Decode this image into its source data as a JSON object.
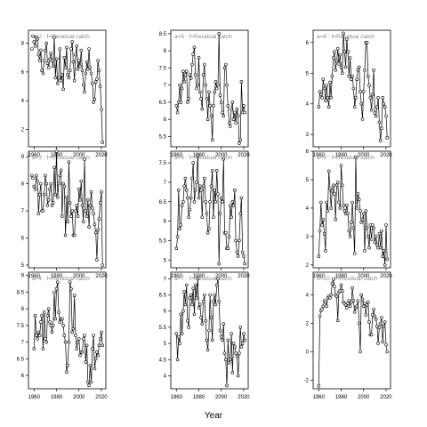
{
  "figure": {
    "xlabel": "Year"
  },
  "chart_data": [
    {
      "type": "scatter",
      "title": "a=2 : f=Residual catch",
      "xlim": [
        1955,
        2024
      ],
      "ylim": [
        0.8,
        8.9
      ],
      "xticks": [
        1960,
        1980,
        2000,
        2020
      ],
      "yticks": [
        2,
        4,
        6,
        8
      ],
      "line_from": 1960,
      "years": [
        1958,
        1959,
        1960,
        1961,
        1962,
        1963,
        1964,
        1965,
        1966,
        1967,
        1968,
        1969,
        1970,
        1971,
        1972,
        1973,
        1974,
        1975,
        1976,
        1977,
        1978,
        1979,
        1980,
        1981,
        1982,
        1983,
        1984,
        1985,
        1986,
        1987,
        1988,
        1989,
        1990,
        1991,
        1992,
        1993,
        1994,
        1995,
        1996,
        1997,
        1998,
        1999,
        2000,
        2001,
        2002,
        2003,
        2004,
        2005,
        2006,
        2007,
        2008,
        2009,
        2010,
        2011,
        2012,
        2013,
        2014,
        2015,
        2016,
        2017,
        2018,
        2019,
        2020,
        2021
      ],
      "values": [
        7.6,
        8.5,
        8.1,
        7.8,
        8.4,
        8.3,
        7.2,
        6.8,
        7.5,
        6.1,
        5.9,
        6.8,
        7.5,
        8.0,
        6.6,
        6.3,
        6.9,
        7.3,
        6.8,
        6.4,
        8.4,
        5.6,
        6.9,
        5.2,
        5.6,
        7.6,
        5.4,
        5.8,
        4.8,
        7.0,
        6.3,
        7.7,
        5.8,
        5.6,
        6.1,
        7.6,
        8.1,
        6.7,
        5.4,
        7.2,
        7.8,
        6.2,
        6.8,
        6.4,
        7.5,
        6.1,
        5.1,
        4.6,
        5.9,
        6.7,
        6.2,
        7.6,
        6.3,
        5.9,
        5.2,
        3.9,
        4.1,
        5.3,
        5.5,
        6.8,
        6.1,
        5.0,
        3.4,
        1.1
      ]
    },
    {
      "type": "scatter",
      "title": "a=5 : f=Residual catch",
      "xlim": [
        1955,
        2024
      ],
      "ylim": [
        5.2,
        8.6
      ],
      "xticks": [
        1960,
        1980,
        2000,
        2020
      ],
      "yticks": [
        5.5,
        6.0,
        6.5,
        7.0,
        7.5,
        8.0,
        8.5
      ],
      "line_from": 1960,
      "years": [
        1960,
        1961,
        1962,
        1963,
        1964,
        1965,
        1966,
        1967,
        1968,
        1969,
        1970,
        1971,
        1972,
        1973,
        1974,
        1975,
        1976,
        1977,
        1978,
        1979,
        1980,
        1981,
        1982,
        1983,
        1984,
        1985,
        1986,
        1987,
        1988,
        1989,
        1990,
        1991,
        1992,
        1993,
        1994,
        1995,
        1996,
        1997,
        1998,
        1999,
        2000,
        2001,
        2002,
        2003,
        2004,
        2005,
        2006,
        2007,
        2008,
        2009,
        2010,
        2011,
        2012,
        2013,
        2014,
        2015,
        2016,
        2017,
        2018,
        2019,
        2020,
        2021
      ],
      "values": [
        6.4,
        6.2,
        6.5,
        7.0,
        6.5,
        6.9,
        7.4,
        7.1,
        7.3,
        7.4,
        6.5,
        6.6,
        7.3,
        7.2,
        7.6,
        7.9,
        8.1,
        7.3,
        6.9,
        7.0,
        7.8,
        6.8,
        6.6,
        6.3,
        7.3,
        7.6,
        7.0,
        6.6,
        6.0,
        6.8,
        6.4,
        6.1,
        5.4,
        6.4,
        6.8,
        7.1,
        6.9,
        7.0,
        8.5,
        6.7,
        6.5,
        6.2,
        6.1,
        7.5,
        7.6,
        7.0,
        6.4,
        5.9,
        5.8,
        6.3,
        6.5,
        6.0,
        6.2,
        5.9,
        6.3,
        6.1,
        5.3,
        5.4,
        7.1,
        6.2,
        6.4,
        6.2
      ]
    },
    {
      "type": "scatter",
      "title": "a=8 : f=Residual catch",
      "xlim": [
        1955,
        2024
      ],
      "ylim": [
        2.6,
        6.4
      ],
      "xticks": [
        1960,
        1980,
        2000,
        2020
      ],
      "yticks": [
        3,
        4,
        5,
        6
      ],
      "line_from": 1960,
      "years": [
        1960,
        1961,
        1962,
        1963,
        1964,
        1965,
        1966,
        1967,
        1968,
        1969,
        1970,
        1971,
        1972,
        1973,
        1974,
        1975,
        1976,
        1977,
        1978,
        1979,
        1980,
        1981,
        1982,
        1983,
        1984,
        1985,
        1986,
        1987,
        1988,
        1989,
        1990,
        1991,
        1992,
        1993,
        1994,
        1995,
        1996,
        1997,
        1998,
        1999,
        2000,
        2001,
        2002,
        2003,
        2004,
        2005,
        2006,
        2007,
        2008,
        2009,
        2010,
        2011,
        2012,
        2013,
        2014,
        2015,
        2016,
        2017,
        2018,
        2019,
        2020,
        2021
      ],
      "values": [
        3.9,
        4.4,
        4.3,
        4.2,
        4.8,
        4.5,
        4.1,
        4.6,
        4.2,
        3.9,
        4.7,
        4.2,
        4.9,
        5.5,
        5.7,
        5.1,
        5.4,
        5.8,
        5.3,
        5.6,
        5.2,
        5.0,
        6.3,
        5.7,
        5.2,
        6.1,
        5.7,
        4.9,
        5.5,
        4.8,
        4.9,
        4.5,
        3.9,
        4.2,
        4.8,
        5.1,
        5.2,
        4.4,
        4.0,
        3.5,
        4.4,
        5.1,
        6.0,
        6.0,
        4.9,
        4.6,
        4.2,
        3.8,
        4.3,
        5.1,
        3.7,
        3.6,
        3.9,
        4.2,
        3.4,
        2.8,
        3.2,
        4.2,
        4.0,
        3.9,
        3.6,
        2.9
      ]
    },
    {
      "type": "scatter",
      "title": "a=3 : f=Residual catch",
      "xlim": [
        1955,
        2024
      ],
      "ylim": [
        4.9,
        9.2
      ],
      "xticks": [
        1960,
        1980,
        2000,
        2020
      ],
      "yticks": [
        5,
        6,
        7,
        8,
        9
      ],
      "line_from": 1960,
      "years": [
        1958,
        1959,
        1960,
        1961,
        1962,
        1963,
        1964,
        1965,
        1966,
        1967,
        1968,
        1969,
        1970,
        1971,
        1972,
        1973,
        1974,
        1975,
        1976,
        1977,
        1978,
        1979,
        1980,
        1981,
        1982,
        1983,
        1984,
        1985,
        1986,
        1987,
        1988,
        1989,
        1990,
        1991,
        1992,
        1993,
        1994,
        1995,
        1996,
        1997,
        1998,
        1999,
        2000,
        2001,
        2002,
        2003,
        2004,
        2005,
        2006,
        2007,
        2008,
        2009,
        2010,
        2011,
        2012,
        2013,
        2014,
        2015,
        2016,
        2017,
        2018,
        2019,
        2020,
        2021
      ],
      "values": [
        8.3,
        8.2,
        7.9,
        7.8,
        8.3,
        8.1,
        6.9,
        7.6,
        8.0,
        7.0,
        7.0,
        7.6,
        8.3,
        8.0,
        7.2,
        7.4,
        7.8,
        8.0,
        7.2,
        7.3,
        8.6,
        7.6,
        9.2,
        7.5,
        8.0,
        8.3,
        8.5,
        6.8,
        8.0,
        7.9,
        6.1,
        7.5,
        6.6,
        8.8,
        7.3,
        6.8,
        7.0,
        6.1,
        6.1,
        7.0,
        7.2,
        6.8,
        7.8,
        7.4,
        8.1,
        7.2,
        6.6,
        8.9,
        7.0,
        6.8,
        7.4,
        6.4,
        7.2,
        7.7,
        7.1,
        6.9,
        6.5,
        6.2,
        5.2,
        6.3,
        6.7,
        7.3,
        7.7,
        5.0
      ]
    },
    {
      "type": "scatter",
      "title": "a=6 : f=Residual catch",
      "xlim": [
        1955,
        2024
      ],
      "ylim": [
        4.8,
        7.8
      ],
      "xticks": [
        1960,
        1980,
        2000,
        2020
      ],
      "yticks": [
        5.0,
        5.5,
        6.0,
        6.5,
        7.0,
        7.5
      ],
      "line_from": 1960,
      "years": [
        1960,
        1961,
        1962,
        1963,
        1964,
        1965,
        1966,
        1967,
        1968,
        1969,
        1970,
        1971,
        1972,
        1973,
        1974,
        1975,
        1976,
        1977,
        1978,
        1979,
        1980,
        1981,
        1982,
        1983,
        1984,
        1985,
        1986,
        1987,
        1988,
        1989,
        1990,
        1991,
        1992,
        1993,
        1994,
        1995,
        1996,
        1997,
        1998,
        1999,
        2000,
        2001,
        2002,
        2003,
        2004,
        2005,
        2006,
        2007,
        2008,
        2009,
        2010,
        2011,
        2012,
        2013,
        2014,
        2015,
        2016,
        2017,
        2018,
        2019,
        2020,
        2021
      ],
      "values": [
        5.3,
        5.6,
        6.8,
        5.8,
        5.9,
        6.4,
        6.5,
        6.9,
        7.1,
        6.8,
        6.6,
        6.1,
        6.3,
        6.6,
        7.1,
        7.5,
        6.5,
        6.8,
        7.0,
        7.7,
        6.6,
        6.9,
        6.8,
        6.1,
        6.9,
        7.1,
        6.5,
        6.2,
        5.7,
        5.8,
        6.5,
        6.9,
        7.3,
        6.1,
        6.8,
        6.5,
        7.3,
        6.7,
        4.9,
        6.2,
        6.6,
        6.5,
        7.6,
        5.7,
        5.7,
        5.3,
        5.3,
        5.6,
        6.4,
        6.1,
        6.5,
        6.4,
        6.8,
        5.5,
        5.2,
        5.1,
        5.5,
        6.2,
        6.6,
        5.2,
        5.1,
        4.9
      ]
    },
    {
      "type": "scatter",
      "title": "a=9 : f=Residual catch",
      "xlim": [
        1955,
        2024
      ],
      "ylim": [
        1.9,
        6.0
      ],
      "xticks": [
        1960,
        1980,
        2000,
        2020
      ],
      "yticks": [
        2,
        3,
        4,
        5,
        6
      ],
      "line_from": 1960,
      "years": [
        1960,
        1961,
        1962,
        1963,
        1964,
        1965,
        1966,
        1967,
        1968,
        1969,
        1970,
        1971,
        1972,
        1973,
        1974,
        1975,
        1976,
        1977,
        1978,
        1979,
        1980,
        1981,
        1982,
        1983,
        1984,
        1985,
        1986,
        1987,
        1988,
        1989,
        1990,
        1991,
        1992,
        1993,
        1994,
        1995,
        1996,
        1997,
        1998,
        1999,
        2000,
        2001,
        2002,
        2003,
        2004,
        2005,
        2006,
        2007,
        2008,
        2009,
        2010,
        2011,
        2012,
        2013,
        2014,
        2015,
        2016,
        2017,
        2018,
        2019,
        2020,
        2021
      ],
      "values": [
        2.3,
        3.2,
        4.2,
        3.4,
        3.6,
        3.1,
        2.5,
        4.2,
        3.9,
        5.3,
        4.7,
        4.0,
        4.6,
        4.8,
        4.5,
        3.6,
        4.8,
        4.9,
        4.2,
        4.0,
        5.5,
        4.8,
        4.1,
        3.9,
        3.8,
        4.1,
        3.8,
        3.2,
        3.0,
        3.5,
        4.2,
        3.3,
        2.4,
        5.8,
        4.0,
        4.5,
        4.3,
        3.9,
        3.5,
        3.6,
        3.8,
        2.5,
        3.9,
        3.3,
        3.0,
        2.6,
        3.4,
        2.9,
        3.4,
        3.3,
        2.8,
        3.0,
        2.7,
        2.6,
        3.1,
        2.6,
        3.2,
        2.3,
        2.5,
        2.0,
        3.4,
        2.2
      ]
    },
    {
      "type": "scatter",
      "title": "a=4 : f=Residual catch",
      "xlim": [
        1955,
        2024
      ],
      "ylim": [
        5.6,
        9.1
      ],
      "xticks": [
        1960,
        1980,
        2000,
        2020
      ],
      "yticks": [
        6.0,
        6.5,
        7.0,
        7.5,
        8.0,
        8.5,
        9.0
      ],
      "line_from": 1960,
      "years": [
        1960,
        1961,
        1962,
        1963,
        1964,
        1965,
        1966,
        1967,
        1968,
        1969,
        1970,
        1971,
        1972,
        1973,
        1974,
        1975,
        1976,
        1977,
        1978,
        1979,
        1980,
        1981,
        1982,
        1983,
        1984,
        1985,
        1986,
        1987,
        1988,
        1989,
        1990,
        1991,
        1992,
        1993,
        1994,
        1995,
        1996,
        1997,
        1998,
        1999,
        2000,
        2001,
        2002,
        2003,
        2004,
        2005,
        2006,
        2007,
        2008,
        2009,
        2010,
        2011,
        2012,
        2013,
        2014,
        2015,
        2016,
        2017,
        2018,
        2019,
        2020,
        2021
      ],
      "values": [
        6.8,
        7.8,
        7.2,
        7.1,
        7.3,
        7.2,
        7.6,
        7.8,
        6.8,
        7.9,
        7.1,
        7.0,
        7.8,
        8.0,
        7.6,
        7.5,
        7.3,
        7.5,
        8.5,
        7.7,
        8.6,
        8.8,
        7.9,
        7.6,
        7.7,
        7.7,
        7.5,
        7.2,
        7.0,
        6.1,
        6.3,
        7.0,
        8.8,
        8.6,
        7.3,
        7.4,
        8.4,
        7.2,
        6.8,
        7.0,
        7.1,
        6.6,
        6.7,
        6.7,
        7.1,
        7.2,
        6.4,
        6.9,
        5.8,
        5.7,
        6.3,
        5.8,
        6.8,
        7.2,
        6.2,
        6.5,
        6.7,
        6.6,
        6.9,
        7.1,
        7.3,
        6.9
      ]
    },
    {
      "type": "scatter",
      "title": "a=7 : f=Residual catch",
      "xlim": [
        1955,
        2024
      ],
      "ylim": [
        3.6,
        7.2
      ],
      "xticks": [
        1960,
        1980,
        2000,
        2020
      ],
      "yticks": [
        4.0,
        4.5,
        5.0,
        5.5,
        6.0,
        6.5,
        7.0
      ],
      "line_from": 1960,
      "years": [
        1960,
        1961,
        1962,
        1963,
        1964,
        1965,
        1966,
        1967,
        1968,
        1969,
        1970,
        1971,
        1972,
        1973,
        1974,
        1975,
        1976,
        1977,
        1978,
        1979,
        1980,
        1981,
        1982,
        1983,
        1984,
        1985,
        1986,
        1987,
        1988,
        1989,
        1990,
        1991,
        1992,
        1993,
        1994,
        1995,
        1996,
        1997,
        1998,
        1999,
        2000,
        2001,
        2002,
        2003,
        2004,
        2005,
        2006,
        2007,
        2008,
        2009,
        2010,
        2011,
        2012,
        2013,
        2014,
        2015,
        2016,
        2017,
        2018,
        2019,
        2020,
        2021
      ],
      "values": [
        5.3,
        4.5,
        5.2,
        5.0,
        5.9,
        5.3,
        6.0,
        6.6,
        6.2,
        6.8,
        5.7,
        5.5,
        6.4,
        6.5,
        6.2,
        6.7,
        5.9,
        6.8,
        6.4,
        7.0,
        6.1,
        6.2,
        5.8,
        5.6,
        6.3,
        6.5,
        5.7,
        5.1,
        4.8,
        5.4,
        6.5,
        5.8,
        5.1,
        6.3,
        6.5,
        6.2,
        6.8,
        7.0,
        6.3,
        5.4,
        5.2,
        5.1,
        5.6,
        4.7,
        4.5,
        3.7,
        5.1,
        4.4,
        4.5,
        5.3,
        4.1,
        5.0,
        4.9,
        4.7,
        4.6,
        4.0,
        4.7,
        5.5,
        4.9,
        5.0,
        5.3,
        5.1
      ]
    },
    {
      "type": "scatter",
      "title": "a=10 : f=Residual catch",
      "xlim": [
        1955,
        2024
      ],
      "ylim": [
        -2.6,
        5.6
      ],
      "xticks": [
        1960,
        1980,
        2000,
        2020
      ],
      "yticks": [
        -2,
        0,
        2,
        4
      ],
      "line_from": 1960,
      "years": [
        1960,
        1961,
        1962,
        1963,
        1964,
        1965,
        1966,
        1967,
        1968,
        1969,
        1970,
        1971,
        1972,
        1973,
        1974,
        1975,
        1976,
        1977,
        1978,
        1979,
        1980,
        1981,
        1982,
        1983,
        1984,
        1985,
        1986,
        1987,
        1988,
        1989,
        1990,
        1991,
        1992,
        1993,
        1994,
        1995,
        1996,
        1997,
        1998,
        1999,
        2000,
        2001,
        2002,
        2003,
        2004,
        2005,
        2006,
        2007,
        2008,
        2009,
        2010,
        2011,
        2012,
        2013,
        2014,
        2015,
        2016,
        2017,
        2018,
        2019,
        2020,
        2021
      ],
      "values": [
        -2.4,
        2.5,
        2.9,
        3.0,
        3.2,
        3.6,
        3.5,
        3.2,
        3.8,
        3.9,
        3.8,
        4.0,
        4.8,
        5.1,
        4.6,
        4.0,
        3.9,
        2.2,
        4.2,
        4.3,
        4.7,
        4.3,
        3.5,
        3.4,
        3.3,
        3.1,
        3.4,
        3.6,
        3.2,
        3.5,
        4.5,
        3.6,
        2.8,
        3.1,
        3.2,
        3.6,
        2.0,
        0.0,
        4.0,
        3.7,
        3.2,
        3.4,
        2.6,
        3.3,
        3.5,
        2.1,
        1.2,
        1.2,
        2.6,
        3.0,
        2.5,
        2.3,
        1.8,
        0.6,
        1.7,
        2.0,
        2.4,
        0.7,
        1.8,
        2.1,
        0.5,
        0.0
      ]
    }
  ]
}
